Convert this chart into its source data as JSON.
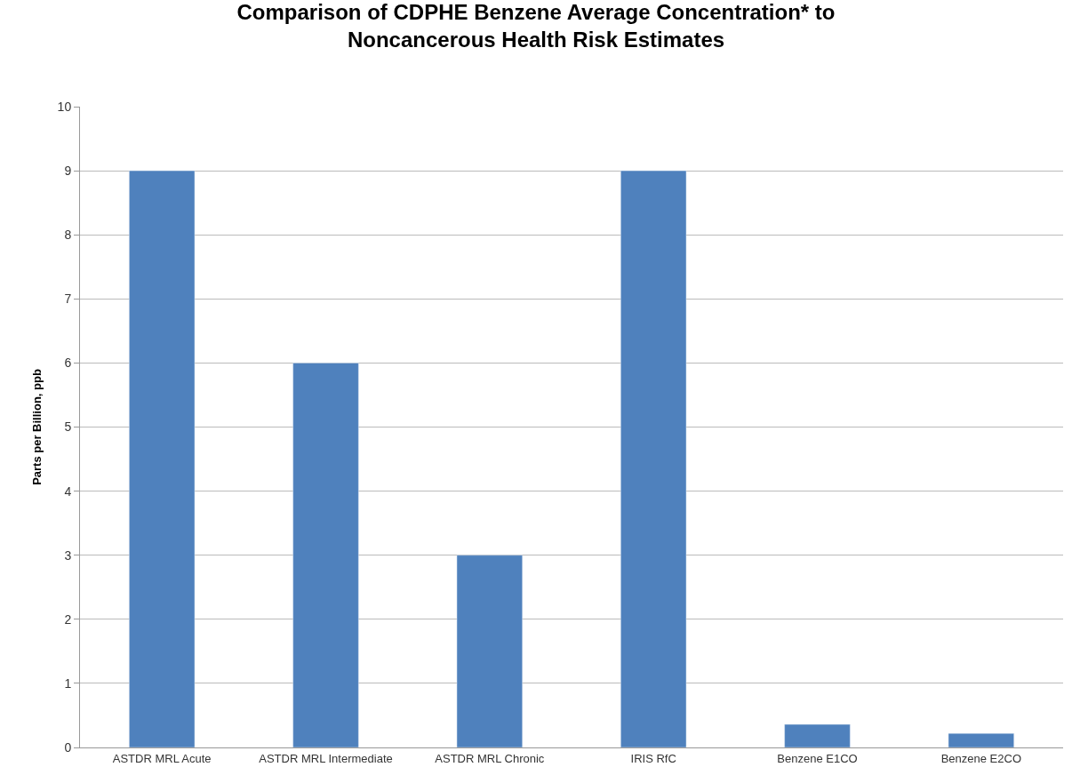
{
  "chart_data": {
    "type": "bar",
    "title": "Comparison of CDPHE Benzene Average Concentration* to\nNoncancerous Health Risk Estimates",
    "ylabel": "Parts per Billion, ppb",
    "categories": [
      "ASTDR MRL Acute",
      "ASTDR MRL Intermediate",
      "ASTDR MRL Chronic",
      "IRIS RfC",
      "Benzene E1CO",
      "Benzene E2CO"
    ],
    "values": [
      9,
      6,
      3,
      9,
      0.36,
      0.22
    ],
    "color": "#4f81bd",
    "ylim": [
      0,
      10
    ],
    "yticks": [
      0,
      1,
      2,
      3,
      4,
      5,
      6,
      7,
      8,
      9,
      10
    ],
    "grid": "y"
  }
}
